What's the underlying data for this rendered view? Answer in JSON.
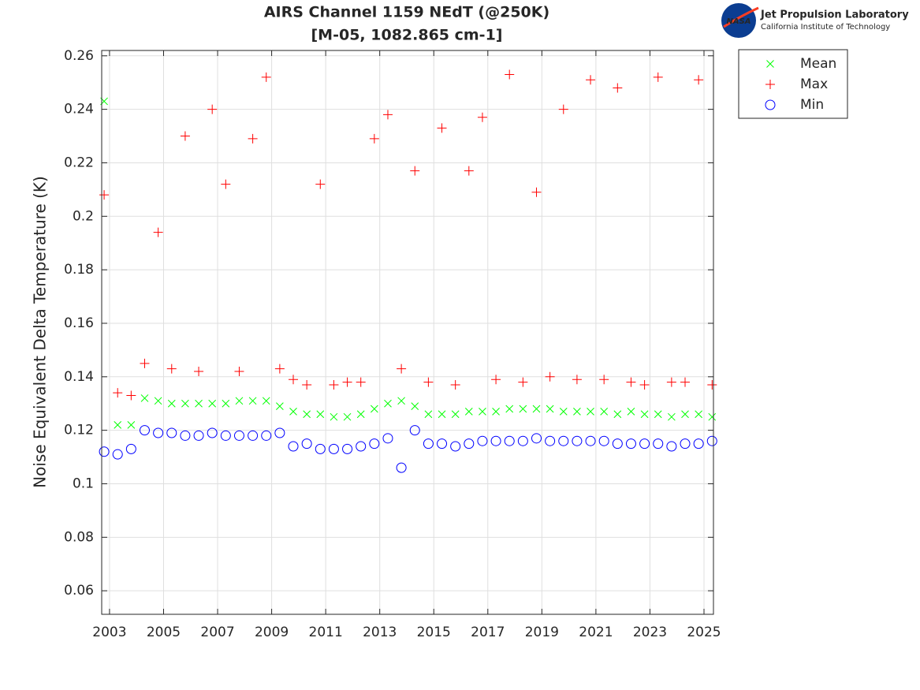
{
  "chart_data": {
    "type": "scatter",
    "title": [
      "AIRS Channel 1159 NEdT (@250K)",
      "[M-05, 1082.865 cm-1]"
    ],
    "ylabel": "Noise Equivalent Delta Temperature (K)",
    "x": [
      2002.8,
      2003.3,
      2003.8,
      2004.3,
      2004.8,
      2005.3,
      2005.8,
      2006.3,
      2006.8,
      2007.3,
      2007.8,
      2008.3,
      2008.8,
      2009.3,
      2009.8,
      2010.3,
      2010.8,
      2011.3,
      2011.8,
      2012.3,
      2012.8,
      2013.3,
      2013.8,
      2014.3,
      2014.8,
      2015.3,
      2015.8,
      2016.3,
      2016.8,
      2017.3,
      2017.8,
      2018.3,
      2018.8,
      2019.3,
      2019.8,
      2020.3,
      2020.8,
      2021.3,
      2021.8,
      2022.3,
      2022.8,
      2023.3,
      2023.8,
      2024.3,
      2024.8,
      2025.3
    ],
    "series": [
      {
        "name": "Mean",
        "color": "#00ff00",
        "marker": "x",
        "values": [
          0.243,
          0.122,
          0.122,
          0.132,
          0.131,
          0.13,
          0.13,
          0.13,
          0.13,
          0.13,
          0.131,
          0.131,
          0.131,
          0.129,
          0.127,
          0.126,
          0.126,
          0.125,
          0.125,
          0.126,
          0.128,
          0.13,
          0.131,
          0.129,
          0.126,
          0.126,
          0.126,
          0.127,
          0.127,
          0.127,
          0.128,
          0.128,
          0.128,
          0.128,
          0.127,
          0.127,
          0.127,
          0.127,
          0.126,
          0.127,
          0.126,
          0.126,
          0.125,
          0.126,
          0.126,
          0.125
        ]
      },
      {
        "name": "Max",
        "color": "#ff0000",
        "marker": "+",
        "values": [
          0.208,
          0.134,
          0.133,
          0.145,
          0.194,
          0.143,
          0.23,
          0.142,
          0.24,
          0.212,
          0.142,
          0.229,
          0.252,
          0.143,
          0.139,
          0.137,
          0.212,
          0.137,
          0.138,
          0.138,
          0.229,
          0.238,
          0.143,
          0.217,
          0.138,
          0.233,
          0.137,
          0.217,
          0.237,
          0.139,
          0.253,
          0.138,
          0.209,
          0.14,
          0.24,
          0.139,
          0.251,
          0.139,
          0.248,
          0.138,
          0.137,
          0.252,
          0.138,
          0.138,
          0.251,
          0.137
        ]
      },
      {
        "name": "Min",
        "color": "#0000ff",
        "marker": "o",
        "values": [
          0.112,
          0.111,
          0.113,
          0.12,
          0.119,
          0.119,
          0.118,
          0.118,
          0.119,
          0.118,
          0.118,
          0.118,
          0.118,
          0.119,
          0.114,
          0.115,
          0.113,
          0.113,
          0.113,
          0.114,
          0.115,
          0.117,
          0.106,
          0.12,
          0.115,
          0.115,
          0.114,
          0.115,
          0.116,
          0.116,
          0.116,
          0.116,
          0.117,
          0.116,
          0.116,
          0.116,
          0.116,
          0.116,
          0.115,
          0.115,
          0.115,
          0.115,
          0.114,
          0.115,
          0.115,
          0.116
        ]
      }
    ],
    "xlim": [
      2002.71,
      2025.35
    ],
    "xticks": [
      2003,
      2005,
      2007,
      2009,
      2011,
      2013,
      2015,
      2017,
      2019,
      2021,
      2023,
      2025
    ],
    "ylim": [
      0.0512,
      0.262
    ],
    "yticks": [
      0.06,
      0.08,
      0.1,
      0.12,
      0.14,
      0.16,
      0.18,
      0.2,
      0.22,
      0.24,
      0.26
    ],
    "grid": true,
    "legend": "northeast-outside"
  },
  "logo": {
    "badge": "NASA",
    "name": "Jet Propulsion Laboratory",
    "subtitle": "California Institute of Technology"
  }
}
